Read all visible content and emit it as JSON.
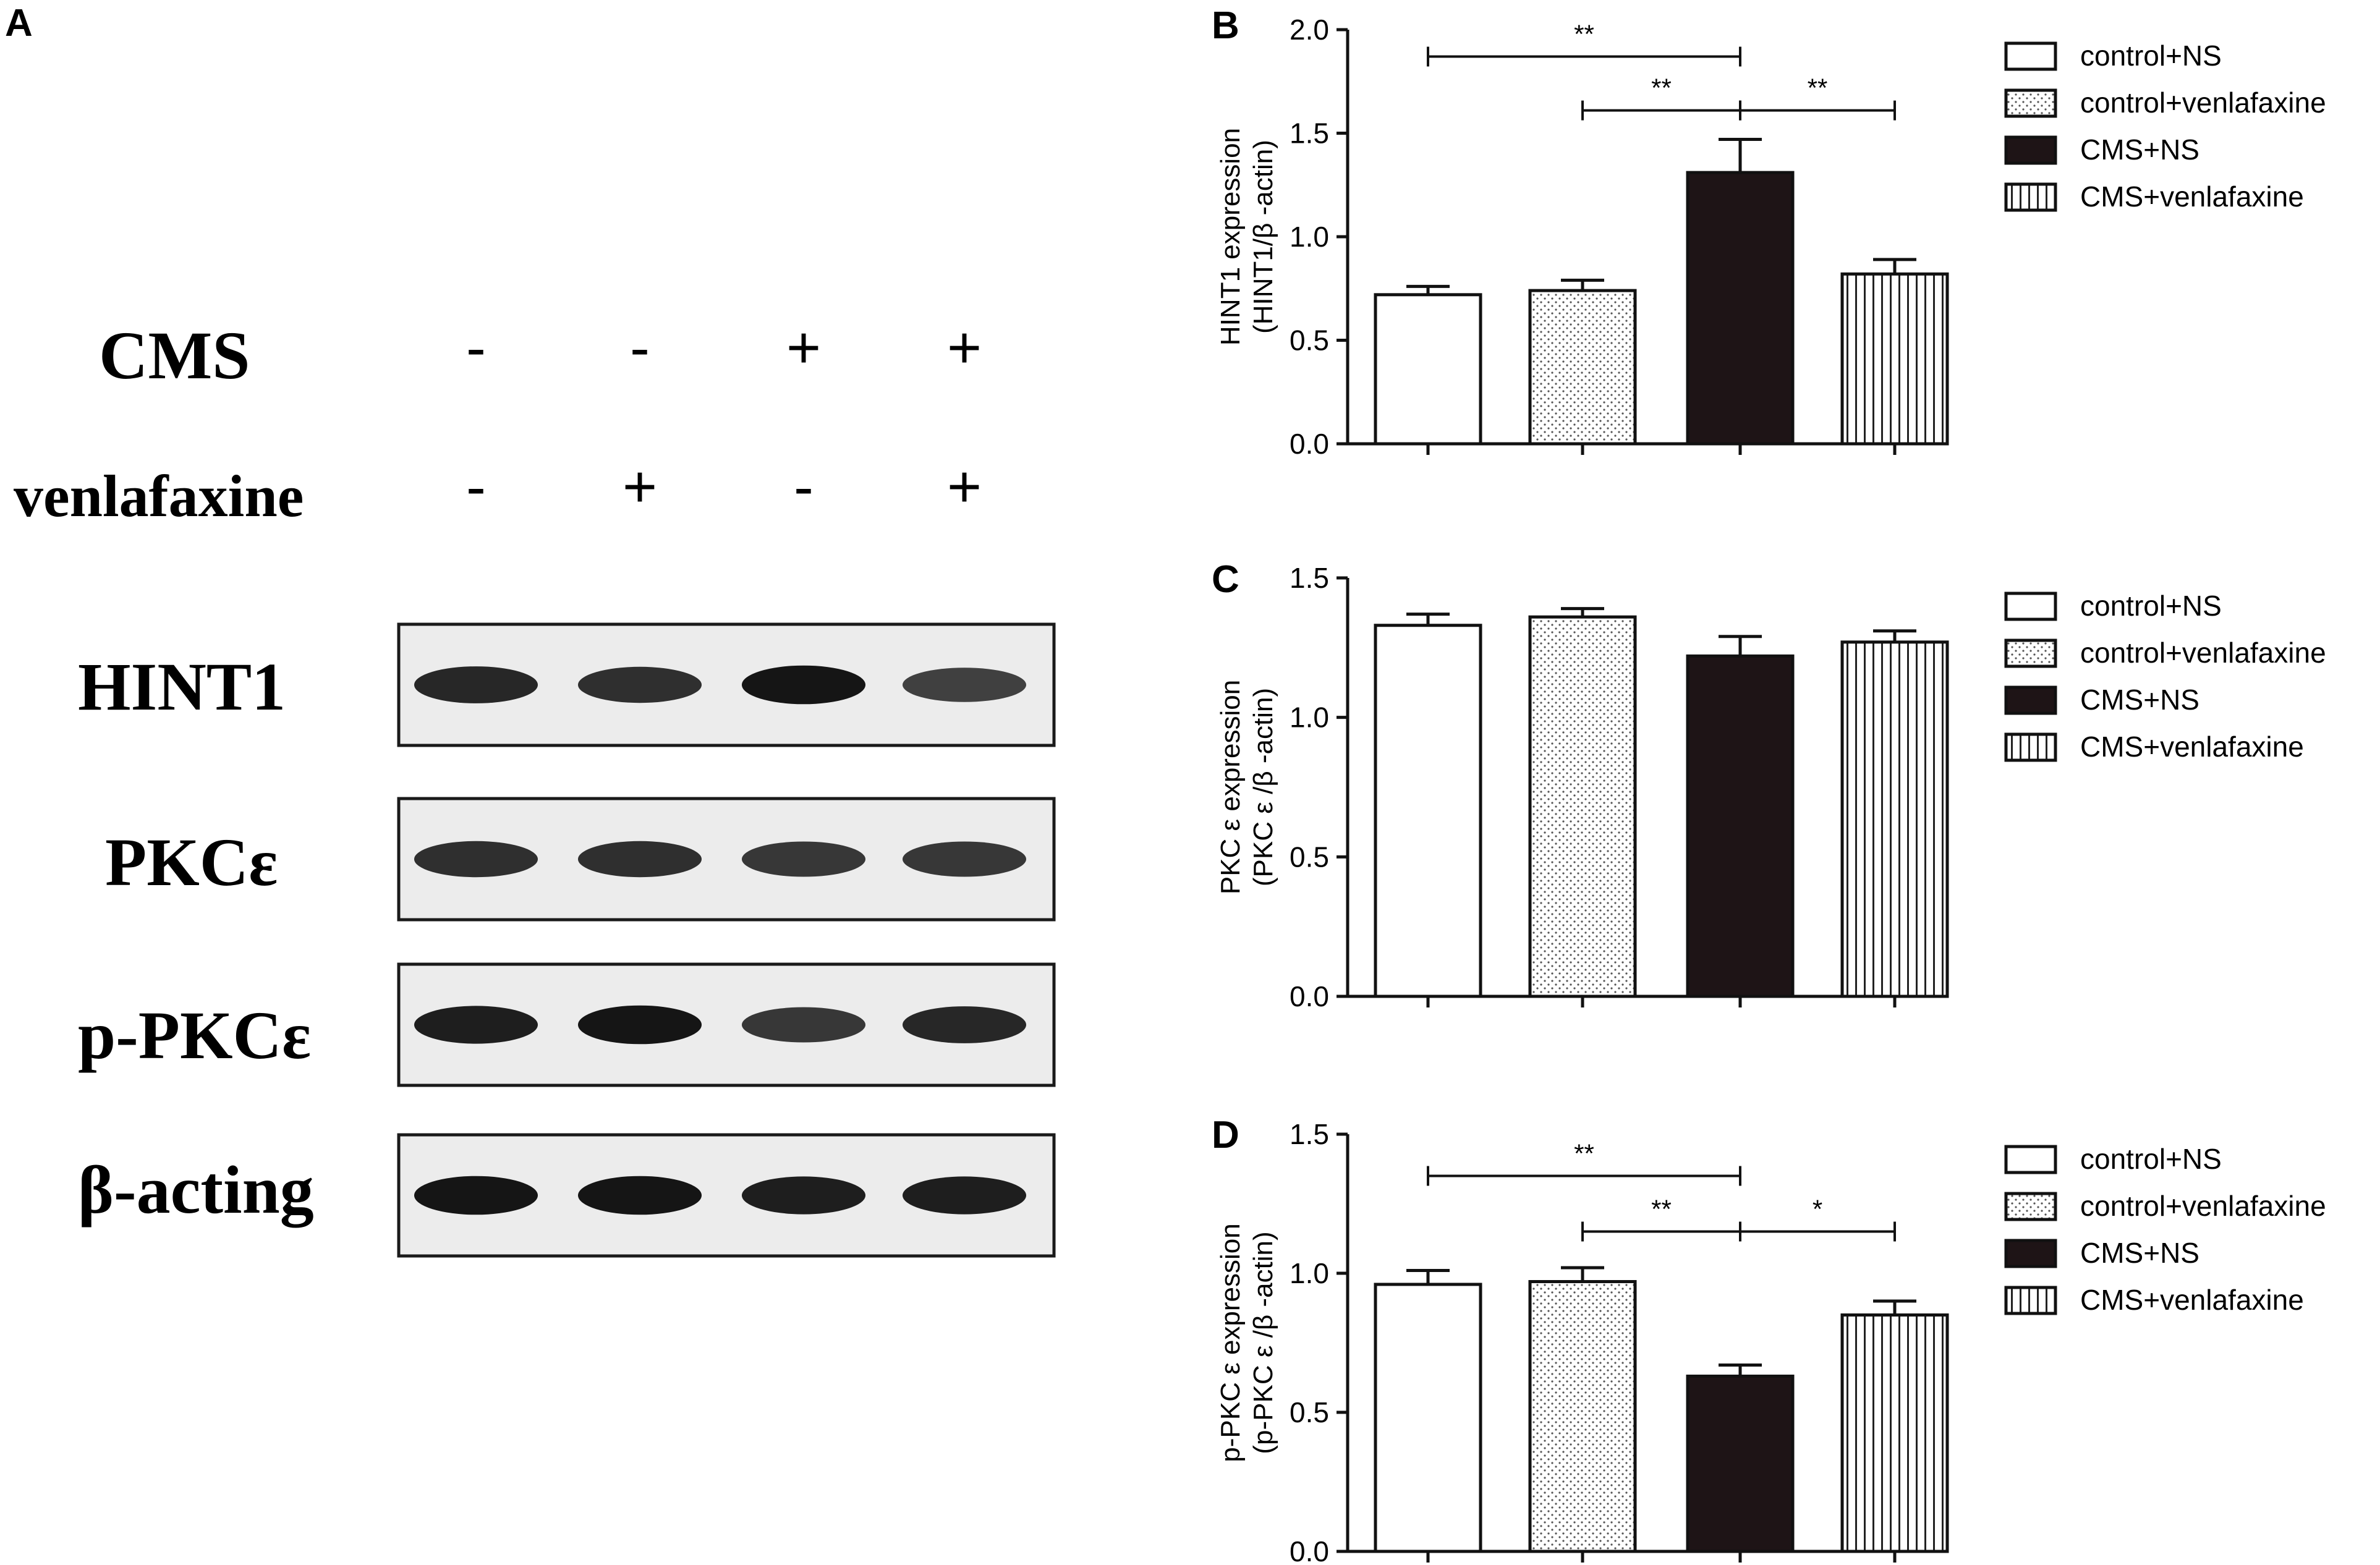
{
  "panel_a": {
    "letter": "A",
    "conditions": [
      {
        "label": "CMS",
        "signs": [
          "-",
          "-",
          "+",
          "+"
        ]
      },
      {
        "label": "venlafaxine",
        "signs": [
          "-",
          "+",
          "-",
          "+"
        ]
      }
    ],
    "blots": [
      {
        "label": "HINT1",
        "band_intensity": [
          0.85,
          0.8,
          0.95,
          0.7
        ]
      },
      {
        "label": "PKCε",
        "band_intensity": [
          0.8,
          0.8,
          0.75,
          0.75
        ]
      },
      {
        "label": "p-PKCε",
        "band_intensity": [
          0.9,
          0.95,
          0.75,
          0.85
        ]
      },
      {
        "label": "β-acting",
        "band_intensity": [
          0.95,
          0.95,
          0.9,
          0.9
        ]
      }
    ]
  },
  "legend_labels": [
    "control+NS",
    "control+venlafaxine",
    "CMS+NS",
    "CMS+venlafaxine"
  ],
  "colors": {
    "ink": "#111111",
    "cms_fill": "#1e1416",
    "background": "#ffffff"
  },
  "chart_data": [
    {
      "panel": "B",
      "type": "bar",
      "ylabel_line1": "HINT1 expression",
      "ylabel_line2": "(HINT1/β -actin)",
      "ylim": [
        0,
        2.0
      ],
      "yticks": [
        "0.0",
        "0.5",
        "1.0",
        "1.5",
        "2.0"
      ],
      "series": [
        {
          "name": "control+NS",
          "value": 0.72,
          "error": 0.04,
          "pattern": "white"
        },
        {
          "name": "control+venlafaxine",
          "value": 0.74,
          "error": 0.05,
          "pattern": "dots"
        },
        {
          "name": "CMS+NS",
          "value": 1.31,
          "error": 0.16,
          "pattern": "black"
        },
        {
          "name": "CMS+venlafaxine",
          "value": 0.82,
          "error": 0.07,
          "pattern": "vstripes"
        }
      ],
      "significance": [
        {
          "from": 0,
          "to": 2,
          "y": 1.87,
          "label": "**"
        },
        {
          "from": 1,
          "to": 2,
          "y": 1.61,
          "label": "**"
        },
        {
          "from": 2,
          "to": 3,
          "y": 1.61,
          "label": "**"
        }
      ]
    },
    {
      "panel": "C",
      "type": "bar",
      "ylabel_line1": "PKC ε  expression",
      "ylabel_line2": "(PKC ε /β -actin)",
      "ylim": [
        0,
        1.5
      ],
      "yticks": [
        "0.0",
        "0.5",
        "1.0",
        "1.5"
      ],
      "series": [
        {
          "name": "control+NS",
          "value": 1.33,
          "error": 0.04,
          "pattern": "white"
        },
        {
          "name": "control+venlafaxine",
          "value": 1.36,
          "error": 0.03,
          "pattern": "dots"
        },
        {
          "name": "CMS+NS",
          "value": 1.22,
          "error": 0.07,
          "pattern": "black"
        },
        {
          "name": "CMS+venlafaxine",
          "value": 1.27,
          "error": 0.04,
          "pattern": "vstripes"
        }
      ],
      "significance": []
    },
    {
      "panel": "D",
      "type": "bar",
      "ylabel_line1": "p-PKC ε  expression",
      "ylabel_line2": "(p-PKC ε /β -actin)",
      "ylim": [
        0,
        1.5
      ],
      "yticks": [
        "0.0",
        "0.5",
        "1.0",
        "1.5"
      ],
      "series": [
        {
          "name": "control+NS",
          "value": 0.96,
          "error": 0.05,
          "pattern": "white"
        },
        {
          "name": "control+venlafaxine",
          "value": 0.97,
          "error": 0.05,
          "pattern": "dots"
        },
        {
          "name": "CMS+NS",
          "value": 0.63,
          "error": 0.04,
          "pattern": "black"
        },
        {
          "name": "CMS+venlafaxine",
          "value": 0.85,
          "error": 0.05,
          "pattern": "vstripes"
        }
      ],
      "significance": [
        {
          "from": 0,
          "to": 2,
          "y": 1.35,
          "label": "**"
        },
        {
          "from": 1,
          "to": 2,
          "y": 1.15,
          "label": "**"
        },
        {
          "from": 2,
          "to": 3,
          "y": 1.15,
          "label": "*"
        }
      ]
    }
  ]
}
